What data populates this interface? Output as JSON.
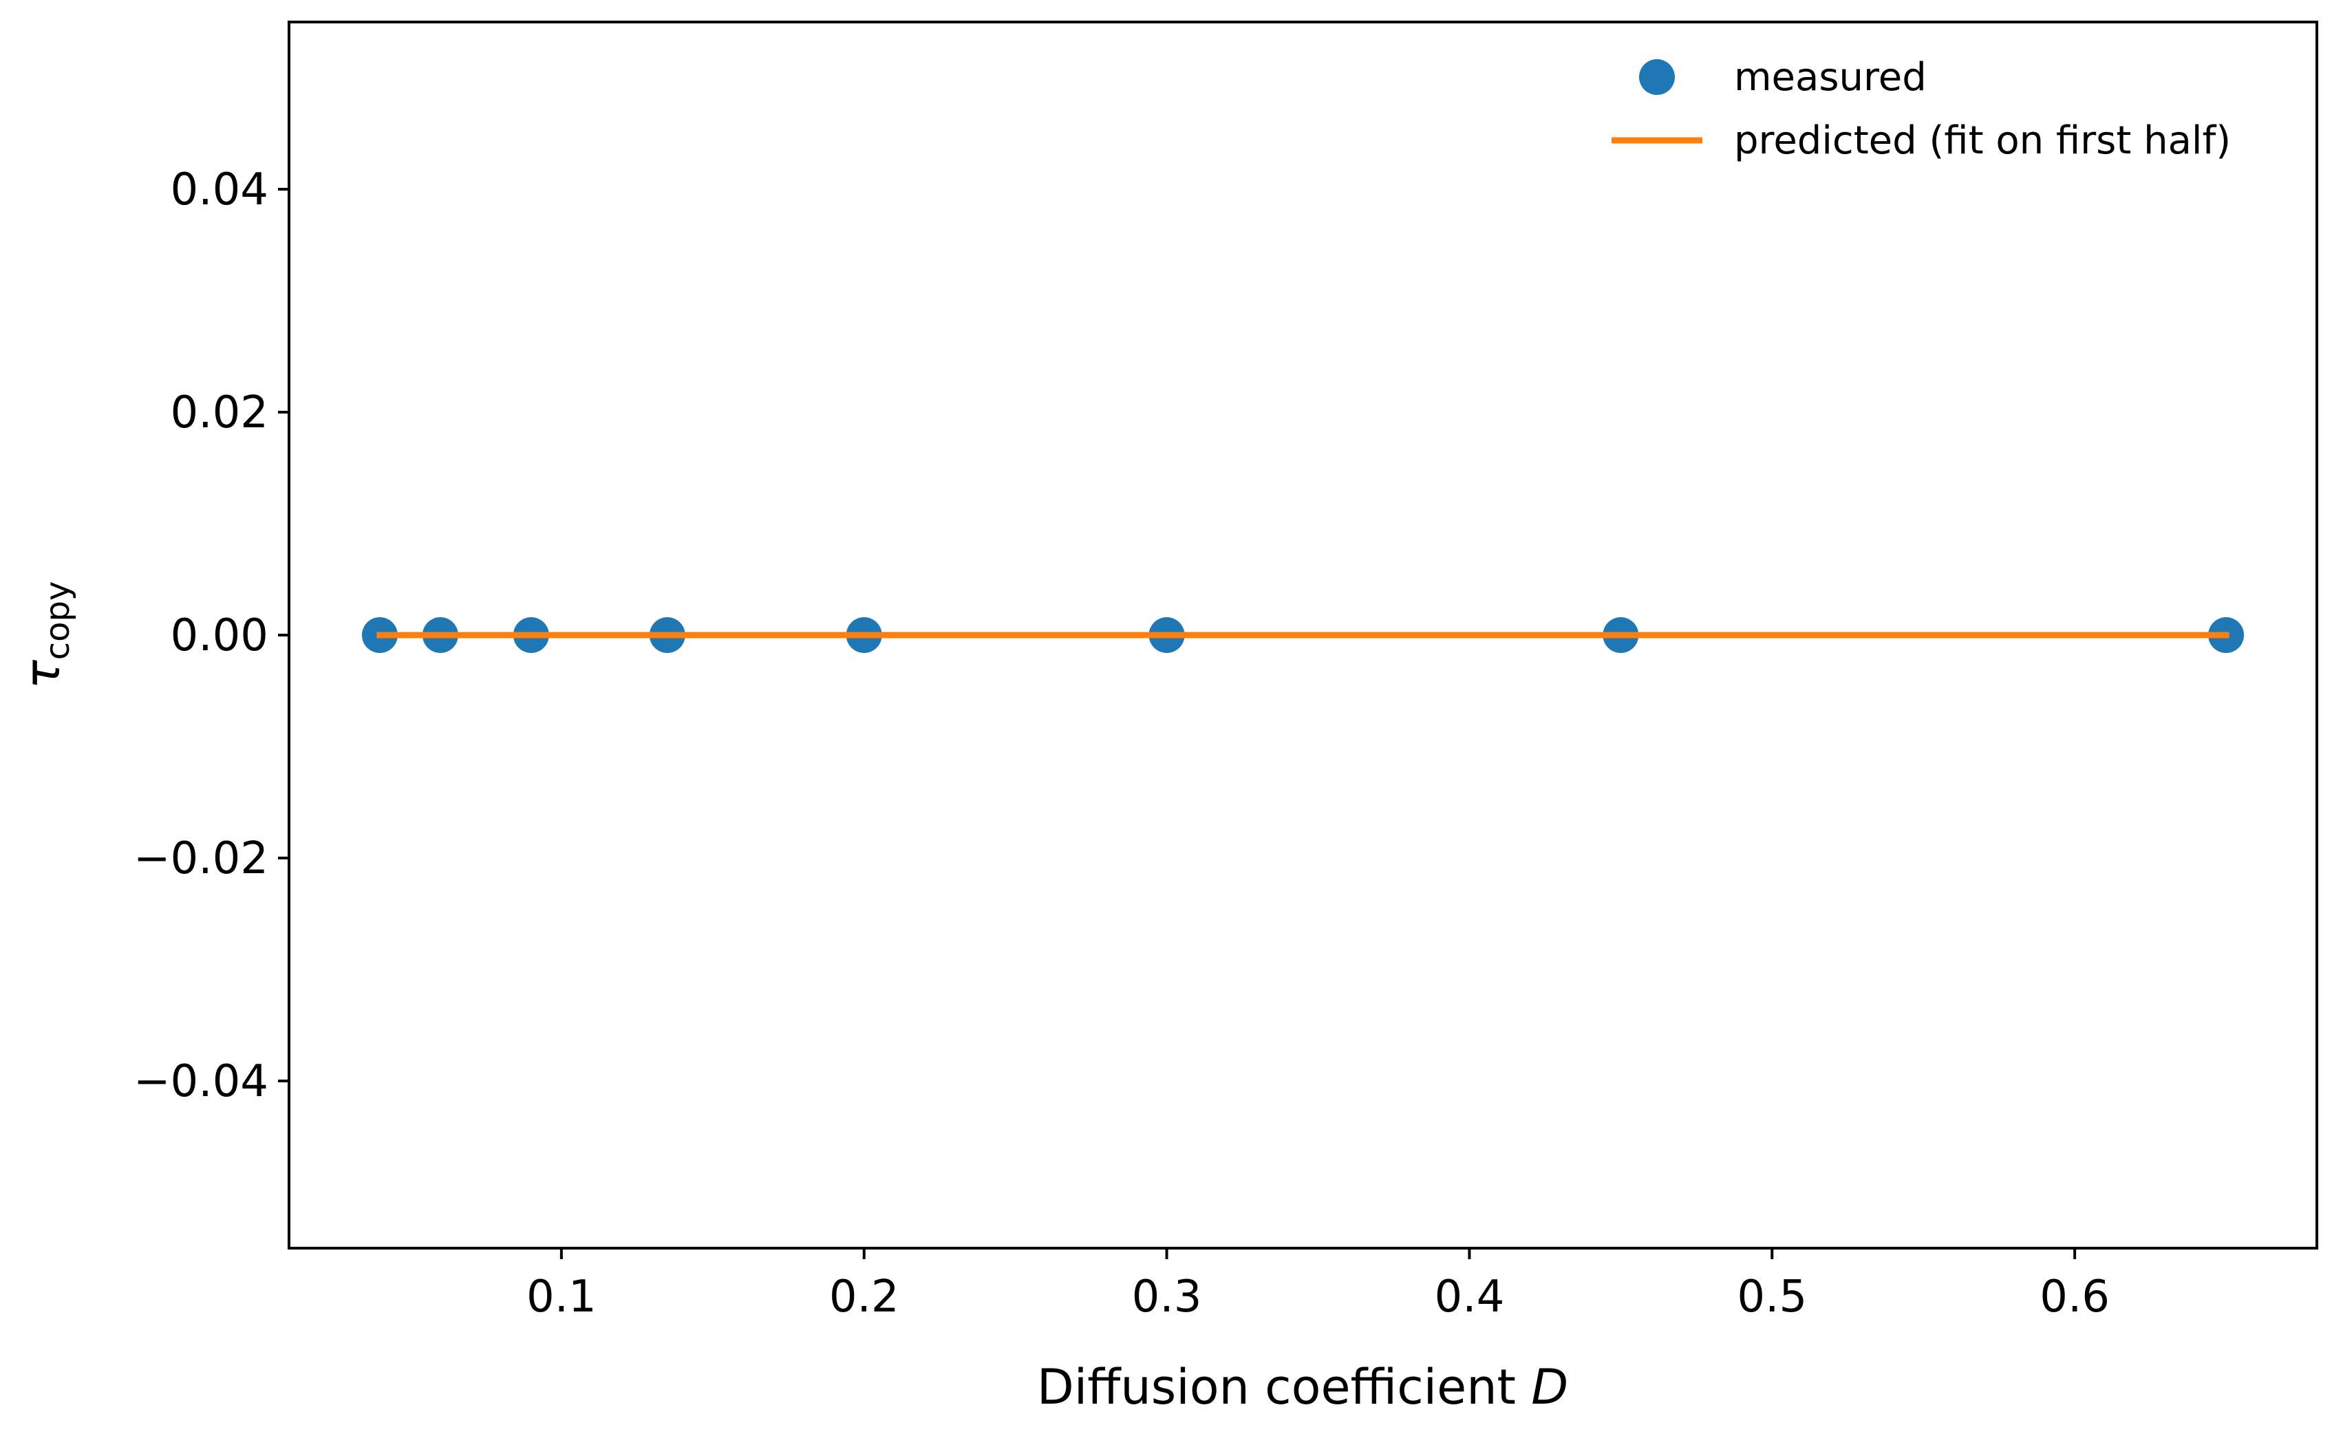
{
  "chart_data": {
    "type": "scatter",
    "title": "",
    "xlabel_main": "Diffusion coefficient",
    "xlabel_var": "D",
    "ylabel_main": "τ",
    "ylabel_sub": "copy",
    "xlim": [
      0.01,
      0.68
    ],
    "ylim": [
      -0.055,
      0.055
    ],
    "xticks": [
      0.1,
      0.2,
      0.3,
      0.4,
      0.5,
      0.6
    ],
    "xtick_labels": [
      "0.1",
      "0.2",
      "0.3",
      "0.4",
      "0.5",
      "0.6"
    ],
    "yticks": [
      0.04,
      0.02,
      0.0,
      -0.02,
      -0.04
    ],
    "ytick_labels": [
      "0.04",
      "0.02",
      "0.00",
      "−0.02",
      "−0.04"
    ],
    "grid": false,
    "legend_position": "top-right",
    "series": [
      {
        "name": "measured",
        "kind": "scatter",
        "color": "#1f77b4",
        "x": [
          0.04,
          0.06,
          0.09,
          0.135,
          0.2,
          0.3,
          0.45,
          0.65
        ],
        "y": [
          0,
          0,
          0,
          0,
          0,
          0,
          0,
          0
        ]
      },
      {
        "name": "predicted (fit on first half)",
        "kind": "line",
        "color": "#ff7f0e",
        "x": [
          0.04,
          0.65
        ],
        "y": [
          0,
          0
        ]
      }
    ]
  }
}
